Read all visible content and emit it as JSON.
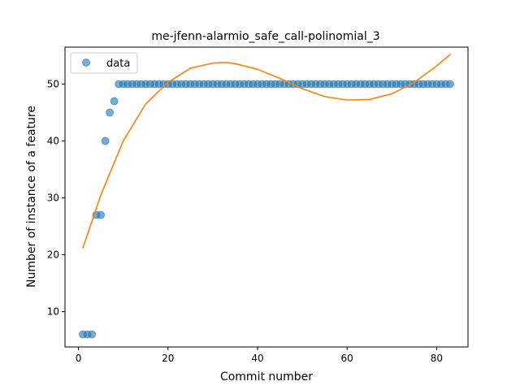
{
  "chart_data": {
    "type": "scatter",
    "title": "me-jfenn-alarmio_safe_call-polinomial_3",
    "xlabel": "Commit number",
    "ylabel": "Number of instance of a feature",
    "xlim": [
      -3,
      87
    ],
    "ylim": [
      3.8,
      56.5
    ],
    "xticks": [
      0,
      20,
      40,
      60,
      80
    ],
    "yticks": [
      10,
      20,
      30,
      40,
      50
    ],
    "legend": {
      "placement": "top-left",
      "entries": [
        "data"
      ]
    },
    "grid": false,
    "series": [
      {
        "name": "data",
        "kind": "scatter",
        "color": "#1f77b4",
        "x": [
          1,
          2,
          3,
          4,
          5,
          6,
          7,
          8,
          9,
          10,
          11,
          12,
          13,
          14,
          15,
          16,
          17,
          18,
          19,
          20,
          21,
          22,
          23,
          24,
          25,
          26,
          27,
          28,
          29,
          30,
          31,
          32,
          33,
          34,
          35,
          36,
          37,
          38,
          39,
          40,
          41,
          42,
          43,
          44,
          45,
          46,
          47,
          48,
          49,
          50,
          51,
          52,
          53,
          54,
          55,
          56,
          57,
          58,
          59,
          60,
          61,
          62,
          63,
          64,
          65,
          66,
          67,
          68,
          69,
          70,
          71,
          72,
          73,
          74,
          75,
          76,
          77,
          78,
          79,
          80,
          81,
          82,
          83
        ],
        "y": [
          6,
          6,
          6,
          27,
          27,
          40,
          45,
          47,
          50,
          50,
          50,
          50,
          50,
          50,
          50,
          50,
          50,
          50,
          50,
          50,
          50,
          50,
          50,
          50,
          50,
          50,
          50,
          50,
          50,
          50,
          50,
          50,
          50,
          50,
          50,
          50,
          50,
          50,
          50,
          50,
          50,
          50,
          50,
          50,
          50,
          50,
          50,
          50,
          50,
          50,
          50,
          50,
          50,
          50,
          50,
          50,
          50,
          50,
          50,
          50,
          50,
          50,
          50,
          50,
          50,
          50,
          50,
          50,
          50,
          50,
          50,
          50,
          50,
          50,
          50,
          50,
          50,
          50,
          50,
          50,
          50,
          50,
          50
        ]
      },
      {
        "kind": "line",
        "color": "#ff7f0e",
        "x": [
          1,
          5,
          10,
          15,
          20,
          25,
          30,
          33,
          35,
          40,
          45,
          50,
          55,
          60,
          65,
          70,
          75,
          80,
          83
        ],
        "y": [
          21.2,
          30.5,
          40.0,
          46.5,
          50.3,
          52.8,
          53.7,
          53.8,
          53.6,
          52.6,
          51.0,
          49.2,
          47.8,
          47.2,
          47.3,
          48.3,
          50.3,
          53.2,
          55.2
        ]
      }
    ]
  }
}
